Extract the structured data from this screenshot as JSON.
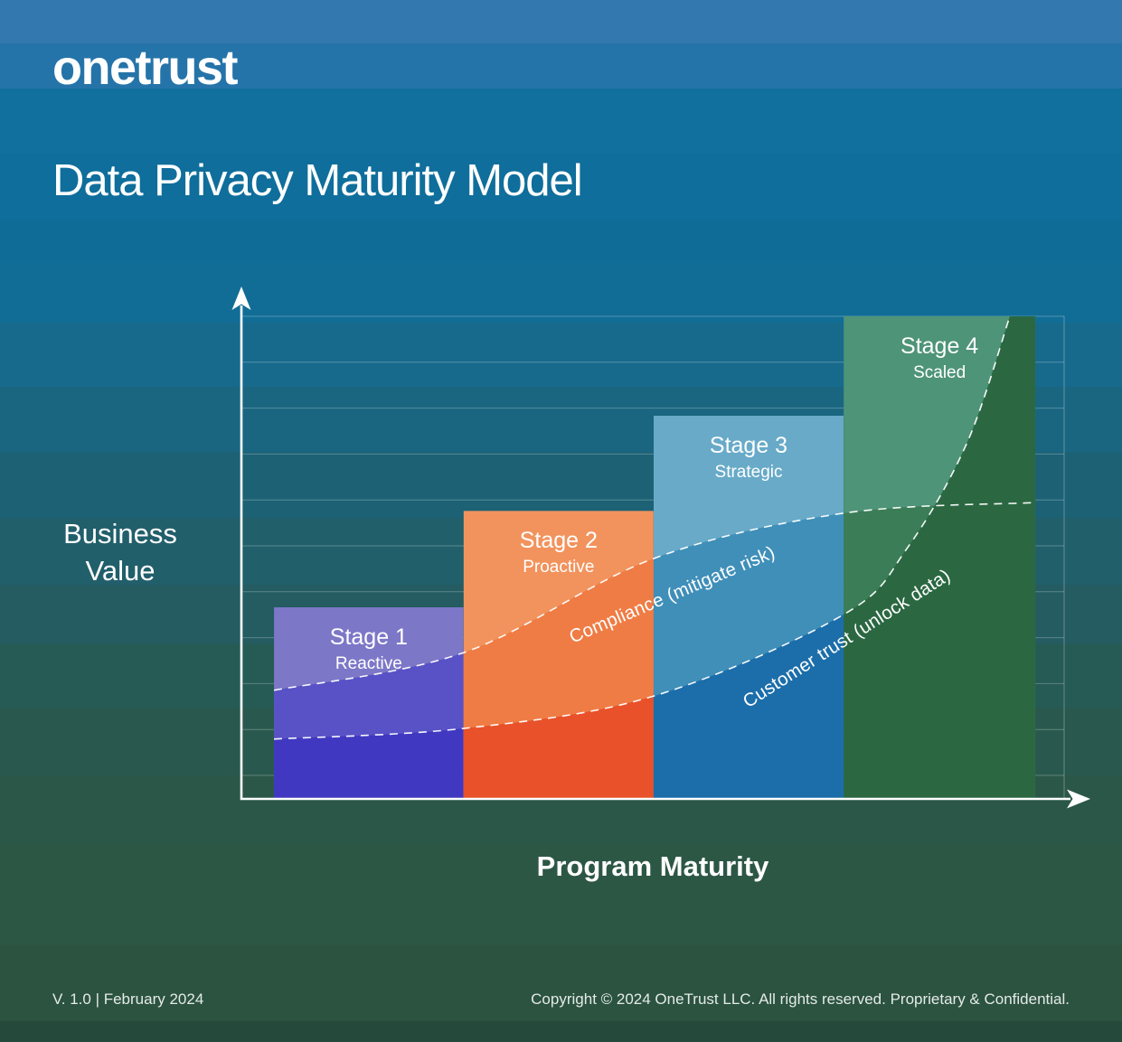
{
  "brand": {
    "logo": "onetrust"
  },
  "header": {
    "title": "Data Privacy Maturity Model"
  },
  "chart_data": {
    "type": "bar",
    "title": "Data Privacy Maturity Model",
    "xlabel": "Program Maturity",
    "ylabel": "Business Value",
    "ylabel_lines": [
      "Business",
      "Value"
    ],
    "ylim": [
      0,
      100
    ],
    "grid": true,
    "legend": false,
    "categories": [
      "Stage 1",
      "Stage 2",
      "Stage 3",
      "Stage 4"
    ],
    "sublabels": [
      "Reactive",
      "Proactive",
      "Strategic",
      "Scaled"
    ],
    "values": [
      39.7,
      59.7,
      79.4,
      100
    ],
    "stages": [
      {
        "label": "Stage 1",
        "sublabel": "Reactive",
        "value": 39.7,
        "x_range": [
          3.96,
          27.0
        ],
        "colors": {
          "light": "#7D77C8",
          "mid": "#5852C6",
          "dark": "#4138C1"
        }
      },
      {
        "label": "Stage 2",
        "sublabel": "Proactive",
        "value": 59.7,
        "x_range": [
          27.0,
          50.1
        ],
        "colors": {
          "light": "#F2935D",
          "mid": "#EF7C44",
          "dark": "#E85129"
        }
      },
      {
        "label": "Stage 3",
        "sublabel": "Strategic",
        "value": 79.4,
        "x_range": [
          50.1,
          73.2
        ],
        "colors": {
          "light": "#68AAC8",
          "mid": "#3F8FB9",
          "dark": "#1C6EAA"
        }
      },
      {
        "label": "Stage 4",
        "sublabel": "Scaled",
        "value": 100,
        "x_range": [
          73.2,
          96.5
        ],
        "colors": {
          "light": "#4E9478",
          "mid": "#3B7D57",
          "dark": "#2B6842"
        }
      }
    ],
    "series": [
      {
        "name": "Compliance (mitigate risk)",
        "points": [
          [
            3.96,
            22.5
          ],
          [
            27.0,
            30.3
          ],
          [
            50.1,
            49.8
          ],
          [
            73.2,
            59.2
          ],
          [
            96.5,
            61.4
          ]
        ]
      },
      {
        "name": "Customer trust (unlock data)",
        "points": [
          [
            3.96,
            12.4
          ],
          [
            27.0,
            14.6
          ],
          [
            50.1,
            21.3
          ],
          [
            73.2,
            38.2
          ],
          [
            80.9,
            51.9
          ],
          [
            88.2,
            73.8
          ],
          [
            93.4,
            100
          ]
        ]
      }
    ],
    "curve_labels": {
      "compliance": "Compliance (mitigate risk)",
      "customer_trust": "Customer trust (unlock data)"
    }
  },
  "footer": {
    "version": "V. 1.0 | February 2024",
    "copyright": "Copyright © 2024 OneTrust LLC. All rights reserved. Proprietary & Confidential."
  }
}
